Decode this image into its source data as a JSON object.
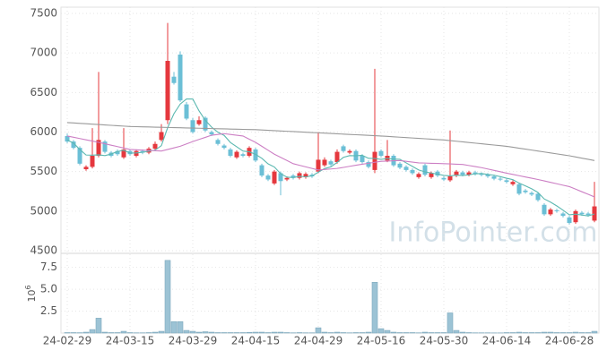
{
  "chart_data": {
    "type": "candlestick",
    "categories": [
      "24-02-29",
      null,
      null,
      null,
      null,
      null,
      null,
      null,
      null,
      null,
      "24-03-15",
      null,
      null,
      null,
      null,
      null,
      null,
      null,
      null,
      null,
      "24-03-29",
      null,
      null,
      null,
      null,
      null,
      null,
      null,
      null,
      null,
      "24-04-15",
      null,
      null,
      null,
      null,
      null,
      null,
      null,
      null,
      null,
      "24-04-29",
      null,
      null,
      null,
      null,
      null,
      null,
      null,
      null,
      null,
      "24-05-16",
      null,
      null,
      null,
      null,
      null,
      null,
      null,
      null,
      null,
      "24-05-30",
      null,
      null,
      null,
      null,
      null,
      null,
      null,
      null,
      null,
      "24-06-14",
      null,
      null,
      null,
      null,
      null,
      null,
      null,
      null,
      null,
      "24-06-28",
      null,
      null,
      null,
      null
    ],
    "open": [
      5950,
      5880,
      5800,
      5530,
      5560,
      5700,
      5880,
      5740,
      5760,
      5680,
      5760,
      5700,
      5760,
      5740,
      5790,
      5900,
      6150,
      6700,
      6980,
      6350,
      6150,
      6100,
      6180,
      6000,
      5900,
      5830,
      5780,
      5680,
      5720,
      5700,
      5780,
      5580,
      5450,
      5350,
      5480,
      5400,
      5450,
      5420,
      5430,
      5460,
      5500,
      5580,
      5630,
      5620,
      5820,
      5740,
      5760,
      5700,
      5620,
      5520,
      5760,
      5640,
      5700,
      5600,
      5560,
      5520,
      5430,
      5580,
      5430,
      5500,
      5420,
      5390,
      5450,
      5490,
      5460,
      5490,
      5470,
      5460,
      5440,
      5410,
      5390,
      5340,
      5340,
      5260,
      5230,
      5220,
      5080,
      4960,
      5010,
      4970,
      4920,
      4860,
      4980,
      4970,
      4880
    ],
    "high": [
      5980,
      5900,
      5820,
      5580,
      6050,
      6760,
      5900,
      5760,
      5780,
      6050,
      5780,
      5780,
      5780,
      5810,
      5880,
      6100,
      7380,
      6760,
      7020,
      6380,
      6180,
      6200,
      6200,
      6020,
      5920,
      5850,
      5800,
      5770,
      5740,
      5820,
      5800,
      5600,
      5470,
      5520,
      5500,
      5440,
      5470,
      5500,
      5490,
      5480,
      6000,
      5680,
      5650,
      5780,
      5840,
      5780,
      5780,
      5720,
      5640,
      6800,
      5780,
      5900,
      5720,
      5620,
      5580,
      5540,
      5490,
      5600,
      5500,
      5520,
      5440,
      6020,
      5520,
      5510,
      5510,
      5510,
      5490,
      5480,
      5460,
      5430,
      5410,
      5390,
      5360,
      5280,
      5250,
      5240,
      5100,
      5040,
      5030,
      4990,
      4940,
      5020,
      5000,
      4990,
      5370
    ],
    "low": [
      5860,
      5780,
      5580,
      5510,
      5540,
      5680,
      5730,
      5680,
      5700,
      5660,
      5700,
      5680,
      5720,
      5720,
      5770,
      5880,
      6100,
      6600,
      6380,
      6150,
      5980,
      6080,
      6000,
      5950,
      5830,
      5780,
      5680,
      5660,
      5680,
      5680,
      5620,
      5430,
      5380,
      5330,
      5200,
      5380,
      5400,
      5400,
      5410,
      5420,
      5480,
      5560,
      5570,
      5600,
      5740,
      5720,
      5620,
      5600,
      5540,
      5480,
      5680,
      5620,
      5560,
      5530,
      5500,
      5460,
      5410,
      5440,
      5410,
      5430,
      5380,
      5370,
      5430,
      5440,
      5440,
      5450,
      5440,
      5420,
      5390,
      5380,
      5350,
      5320,
      5200,
      5220,
      5190,
      5120,
      4940,
      4940,
      4980,
      4920,
      4830,
      4840,
      4940,
      4930,
      4860
    ],
    "close": [
      5880,
      5800,
      5600,
      5560,
      5700,
      5900,
      5750,
      5700,
      5720,
      5780,
      5720,
      5760,
      5740,
      5790,
      5850,
      6000,
      6900,
      6620,
      6400,
      6170,
      6000,
      6150,
      6020,
      5970,
      5850,
      5800,
      5700,
      5750,
      5700,
      5800,
      5640,
      5450,
      5400,
      5500,
      5380,
      5420,
      5420,
      5480,
      5470,
      5440,
      5650,
      5650,
      5590,
      5750,
      5760,
      5760,
      5640,
      5620,
      5560,
      5750,
      5700,
      5700,
      5580,
      5550,
      5520,
      5480,
      5470,
      5460,
      5480,
      5450,
      5400,
      5440,
      5500,
      5460,
      5490,
      5470,
      5460,
      5440,
      5410,
      5400,
      5370,
      5370,
      5220,
      5240,
      5210,
      5140,
      4960,
      5020,
      5000,
      4940,
      4850,
      5000,
      4960,
      4950,
      5060
    ],
    "up_color": "#e5383e",
    "down_color": "#6bbfd6",
    "ylim": [
      4500,
      7500
    ],
    "yticks": [
      4500,
      5000,
      5500,
      6000,
      6500,
      7000,
      7500
    ],
    "grid": true,
    "moving_averages": [
      {
        "color": "#5bb8b0",
        "values": [
          5900,
          5860,
          5780,
          5710,
          5708,
          5712,
          5702,
          5722,
          5754,
          5770,
          5734,
          5736,
          5744,
          5758,
          5772,
          5828,
          6056,
          6232,
          6354,
          6418,
          6418,
          6268,
          6148,
          6062,
          5998,
          5958,
          5868,
          5814,
          5760,
          5750,
          5718,
          5668,
          5598,
          5558,
          5474,
          5430,
          5424,
          5440,
          5434,
          5446,
          5492,
          5538,
          5560,
          5616,
          5680,
          5702,
          5700,
          5706,
          5668,
          5666,
          5654,
          5666,
          5658,
          5656,
          5610,
          5566,
          5520,
          5496,
          5482,
          5468,
          5452,
          5446,
          5454,
          5450,
          5458,
          5472,
          5476,
          5464,
          5454,
          5436,
          5416,
          5398,
          5354,
          5320,
          5282,
          5236,
          5154,
          5114,
          5066,
          5012,
          4954,
          4962,
          4950,
          4940,
          4964
        ]
      },
      {
        "color": "#cc7fc4",
        "values": [
          5950,
          5934,
          5918,
          5902,
          5886,
          5870,
          5852,
          5834,
          5816,
          5798,
          5780,
          5776,
          5772,
          5768,
          5764,
          5760,
          5780,
          5800,
          5820,
          5850,
          5880,
          5907,
          5933,
          5960,
          5970,
          5980,
          5970,
          5960,
          5950,
          5910,
          5870,
          5820,
          5770,
          5720,
          5680,
          5640,
          5600,
          5580,
          5560,
          5540,
          5520,
          5527,
          5533,
          5540,
          5553,
          5567,
          5580,
          5593,
          5605,
          5618,
          5630,
          5633,
          5637,
          5640,
          5630,
          5620,
          5610,
          5608,
          5605,
          5603,
          5600,
          5597,
          5593,
          5590,
          5577,
          5563,
          5550,
          5533,
          5515,
          5498,
          5480,
          5464,
          5448,
          5432,
          5416,
          5400,
          5382,
          5364,
          5346,
          5328,
          5310,
          5278,
          5245,
          5213,
          5180
        ]
      },
      {
        "color": "#9a9a9a",
        "values": [
          6120,
          6115,
          6110,
          6105,
          6100,
          6095,
          6090,
          6085,
          6080,
          6075,
          6070,
          6068,
          6066,
          6064,
          6062,
          6060,
          6058,
          6056,
          6054,
          6052,
          6050,
          6048,
          6046,
          6044,
          6042,
          6040,
          6038,
          6036,
          6034,
          6032,
          6030,
          6026,
          6022,
          6018,
          6014,
          6010,
          6006,
          6002,
          5998,
          5994,
          5990,
          5986,
          5982,
          5978,
          5974,
          5970,
          5966,
          5962,
          5958,
          5954,
          5950,
          5945,
          5940,
          5935,
          5930,
          5925,
          5920,
          5915,
          5910,
          5905,
          5900,
          5892,
          5884,
          5876,
          5868,
          5860,
          5852,
          5844,
          5836,
          5828,
          5820,
          5808,
          5796,
          5784,
          5772,
          5760,
          5748,
          5736,
          5724,
          5712,
          5700,
          5685,
          5670,
          5655,
          5640
        ]
      }
    ],
    "volume": {
      "values": [
        0.05,
        0.05,
        0.04,
        0.1,
        0.4,
        1.7,
        0.1,
        0.05,
        0.05,
        0.2,
        0.05,
        0.03,
        0.03,
        0.05,
        0.1,
        0.2,
        8.3,
        1.3,
        1.3,
        0.3,
        0.2,
        0.1,
        0.15,
        0.1,
        0.05,
        0.05,
        0.05,
        0.05,
        0.05,
        0.08,
        0.1,
        0.1,
        0.05,
        0.1,
        0.1,
        0.05,
        0.03,
        0.05,
        0.03,
        0.03,
        0.6,
        0.1,
        0.05,
        0.1,
        0.05,
        0.03,
        0.05,
        0.05,
        0.1,
        5.8,
        0.5,
        0.3,
        0.1,
        0.05,
        0.05,
        0.05,
        0.03,
        0.1,
        0.05,
        0.05,
        0.05,
        2.3,
        0.3,
        0.1,
        0.05,
        0.03,
        0.03,
        0.03,
        0.02,
        0.02,
        0.05,
        0.05,
        0.1,
        0.05,
        0.05,
        0.05,
        0.1,
        0.1,
        0.05,
        0.05,
        0.05,
        0.1,
        0.05,
        0.05,
        0.2
      ],
      "color": "#9cc3d5",
      "ylim": [
        0,
        9
      ],
      "yticks": [
        2.5,
        {
          "value": 5,
          "label": "5.0"
        },
        7.5
      ],
      "ylabel": "10",
      "ylabel_exponent": "6"
    },
    "watermark": "InfoPointer.com"
  }
}
